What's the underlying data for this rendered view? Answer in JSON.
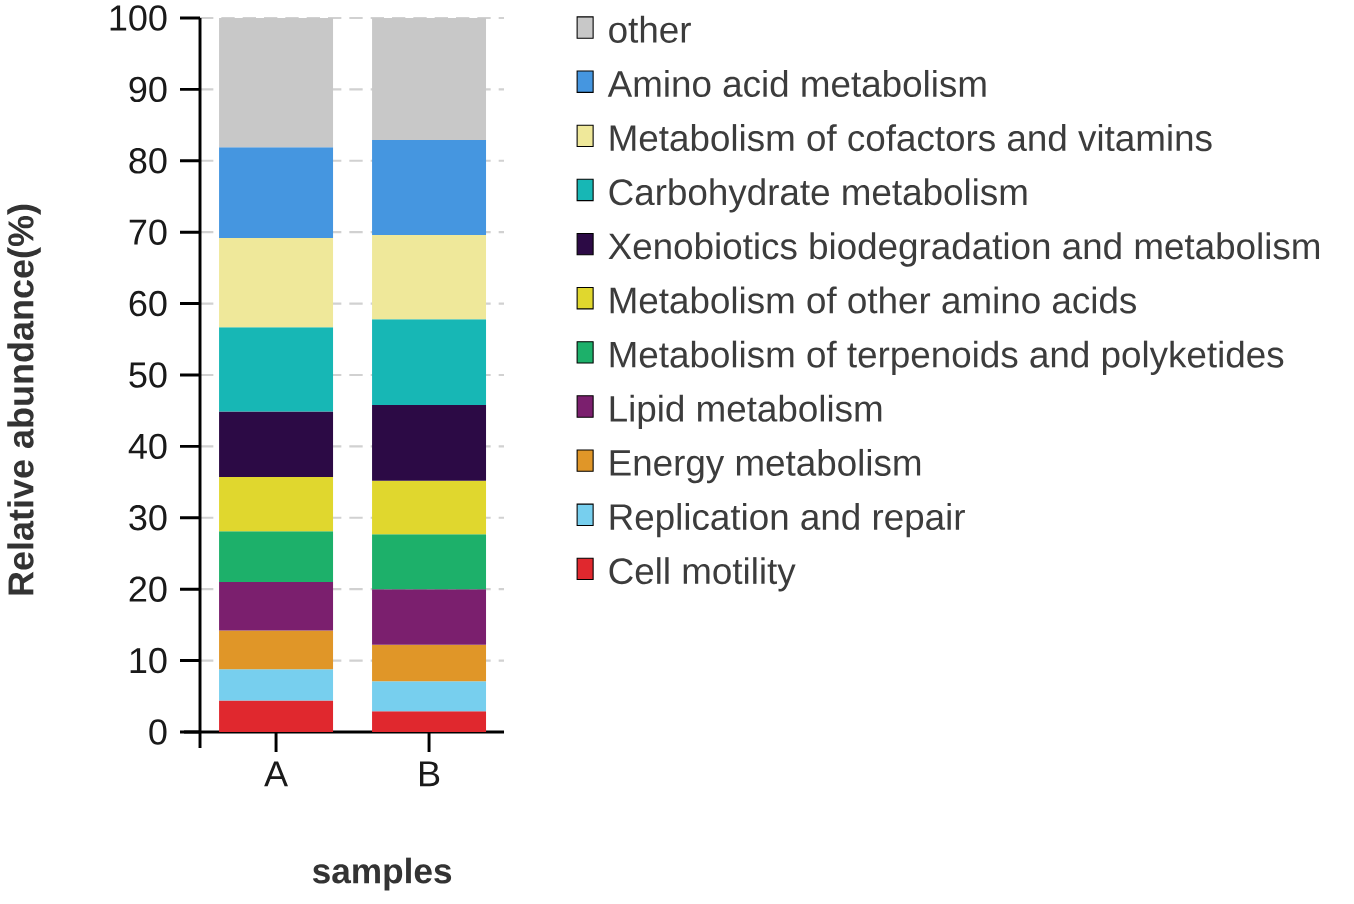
{
  "chart_data": {
    "type": "bar",
    "stacked": true,
    "xlabel": "samples",
    "ylabel": "Relative abundance(%)",
    "categories": [
      "A",
      "B"
    ],
    "ylim": [
      0,
      100
    ],
    "yticks": [
      0,
      10,
      20,
      30,
      40,
      50,
      60,
      70,
      80,
      90,
      100
    ],
    "grid": "y",
    "legend": "right",
    "series": [
      {
        "name": "Cell motility",
        "color": "#e0282e",
        "values": [
          4.4,
          2.9
        ]
      },
      {
        "name": "Replication and repair",
        "color": "#77cfee",
        "values": [
          4.4,
          4.2
        ]
      },
      {
        "name": "Energy metabolism",
        "color": "#e09628",
        "values": [
          5.4,
          5.1
        ]
      },
      {
        "name": "Lipid metabolism",
        "color": "#7b1f6e",
        "values": [
          6.8,
          7.8
        ]
      },
      {
        "name": "Metabolism of terpenoids and polyketides",
        "color": "#1db06a",
        "values": [
          7.1,
          7.7
        ]
      },
      {
        "name": "Metabolism of other amino acids",
        "color": "#e0d72e",
        "values": [
          7.6,
          7.5
        ]
      },
      {
        "name": "Xenobiotics biodegradation and metabolism",
        "color": "#2c0a45",
        "values": [
          9.2,
          10.6
        ]
      },
      {
        "name": "Carbohydrate metabolism",
        "color": "#17b7b5",
        "values": [
          11.8,
          12.0
        ]
      },
      {
        "name": "Metabolism of cofactors and vitamins",
        "color": "#efe89a",
        "values": [
          12.5,
          11.8
        ]
      },
      {
        "name": "Amino acid metabolism",
        "color": "#4596e0",
        "values": [
          12.7,
          13.3
        ]
      },
      {
        "name": "other",
        "color": "#c8c8c8",
        "values": [
          18.1,
          17.1
        ]
      }
    ]
  }
}
